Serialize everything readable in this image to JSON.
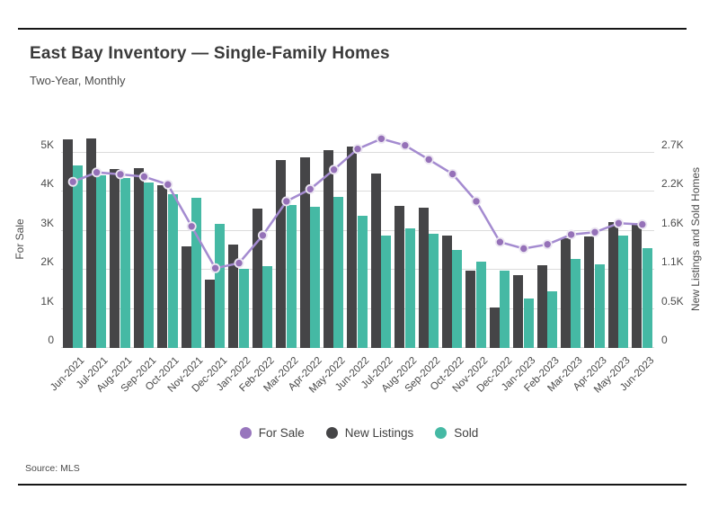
{
  "page": {
    "title": "East Bay Inventory — Single-Family Homes",
    "subtitle": "Two-Year, Monthly",
    "source": "Source: MLS"
  },
  "legend": {
    "items": [
      {
        "label": "For Sale",
        "color": "#9876bd"
      },
      {
        "label": "New Listings",
        "color": "#454547"
      },
      {
        "label": "Sold",
        "color": "#45b9a4"
      }
    ]
  },
  "chart_data": {
    "type": "bar",
    "subtype": "grouped-bars-with-line-overlay",
    "title": "East Bay Inventory — Single-Family Homes",
    "subtitle": "Two-Year, Monthly",
    "grid": true,
    "legend_position": "bottom",
    "categories": [
      "Jun-2021",
      "Jul-2021",
      "Aug-2021",
      "Sep-2021",
      "Oct-2021",
      "Nov-2021",
      "Dec-2021",
      "Jan-2022",
      "Feb-2022",
      "Mar-2022",
      "Apr-2022",
      "May-2022",
      "Jun-2022",
      "Jul-2022",
      "Aug-2022",
      "Sep-2022",
      "Oct-2022",
      "Nov-2022",
      "Dec-2022",
      "Jan-2023",
      "Feb-2023",
      "Mar-2023",
      "Apr-2023",
      "May-2023",
      "Jun-2023"
    ],
    "series": [
      {
        "name": "For Sale",
        "type": "line",
        "axis": "left",
        "color": "#9571b8",
        "line_color": "#a48bd0",
        "marker_ring": "#ece7f2",
        "values": [
          4250,
          4490,
          4440,
          4380,
          4180,
          3110,
          2040,
          2170,
          2880,
          3750,
          4060,
          4560,
          5090,
          5350,
          5180,
          4820,
          4450,
          3750,
          2710,
          2540,
          2650,
          2900,
          2960,
          3190,
          3160
        ]
      },
      {
        "name": "New Listings",
        "type": "bar",
        "axis": "right",
        "color": "#454547",
        "values": [
          2880,
          2900,
          2470,
          2480,
          2250,
          1400,
          940,
          1430,
          1920,
          2600,
          2630,
          2730,
          2780,
          2410,
          1960,
          1940,
          1550,
          1070,
          560,
          1010,
          1140,
          1510,
          1540,
          1740,
          1730
        ]
      },
      {
        "name": "Sold",
        "type": "bar",
        "axis": "right",
        "color": "#45b9a4",
        "values": [
          2520,
          2380,
          2350,
          2280,
          2120,
          2080,
          1720,
          1090,
          1130,
          1970,
          1950,
          2090,
          1830,
          1550,
          1650,
          1580,
          1350,
          1190,
          1070,
          680,
          780,
          1230,
          1150,
          1550,
          1380
        ]
      }
    ],
    "left_axis": {
      "label": "For Sale",
      "tick_labels": [
        "0",
        "1K",
        "2K",
        "3K",
        "4K",
        "5K"
      ],
      "tick_values": [
        0,
        1000,
        2000,
        3000,
        4000,
        5000
      ],
      "ylim": [
        0,
        5565
      ]
    },
    "right_axis": {
      "label": "New Listings and Sold Homes",
      "tick_labels": [
        "0",
        "0.5K",
        "1.1K",
        "1.6K",
        "2.2K",
        "2.7K"
      ],
      "tick_values": [
        0,
        540,
        1080,
        1620,
        2160,
        2700
      ],
      "ylim": [
        0,
        3005
      ]
    }
  }
}
